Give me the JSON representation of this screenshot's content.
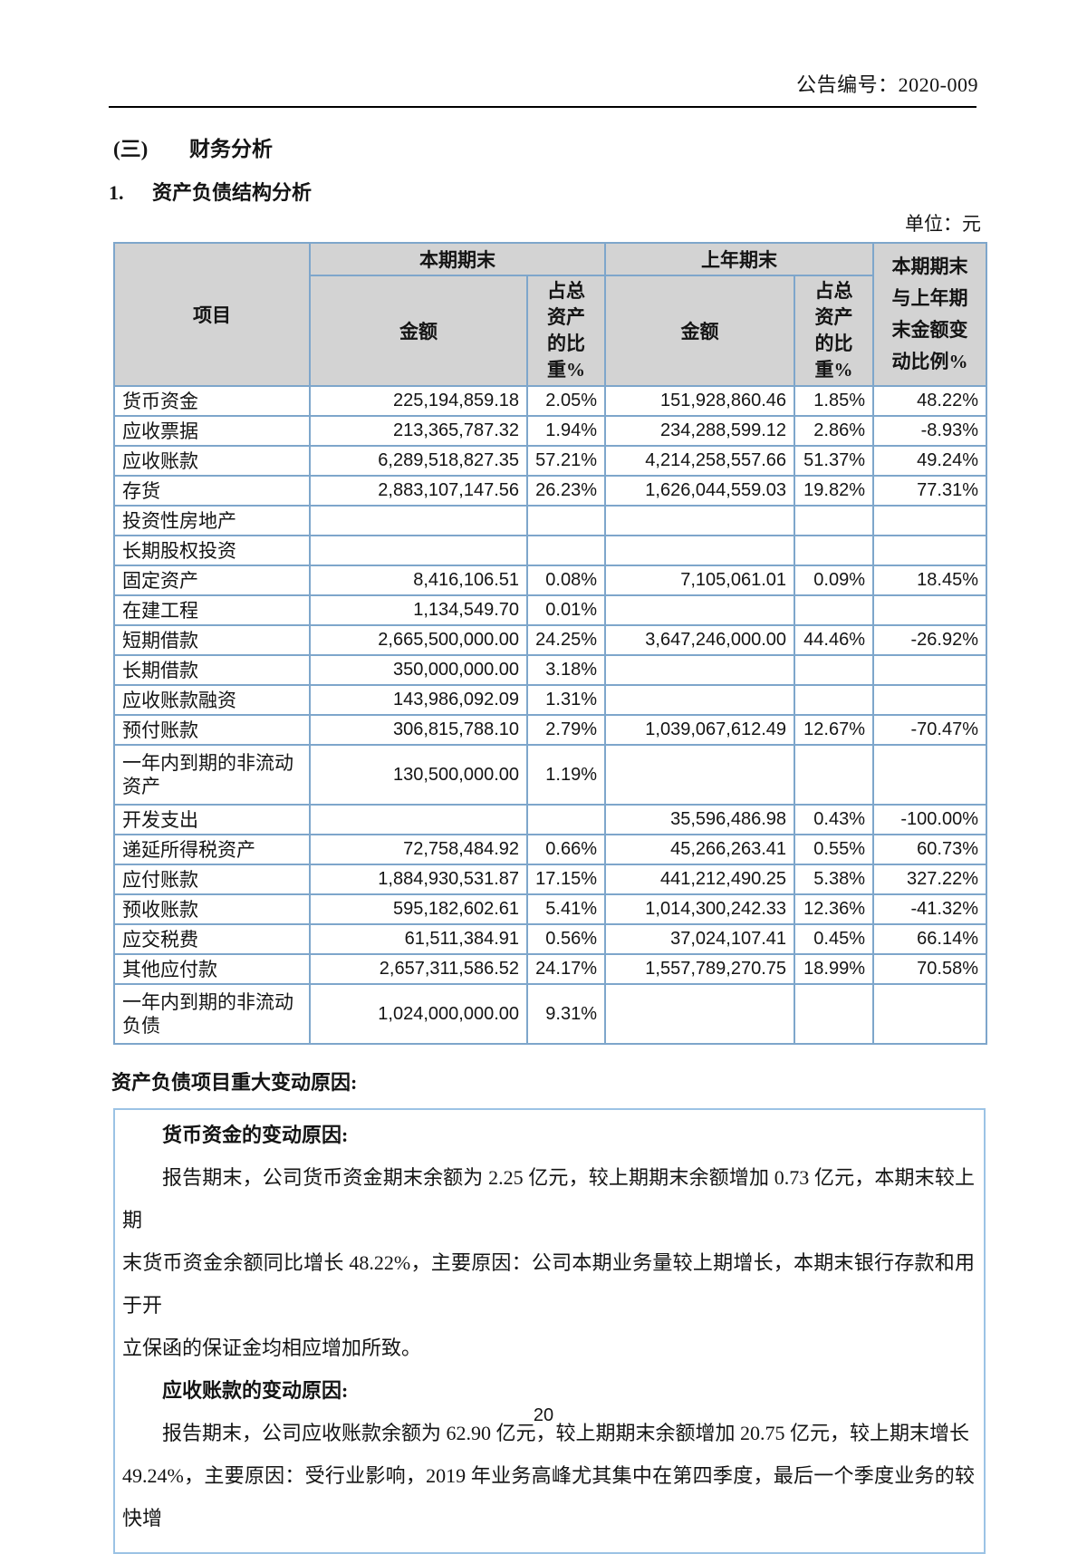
{
  "colors": {
    "table_border": "#7EA6CB",
    "header_bg": "#D3D3D3",
    "box_border": "#9CC3E5",
    "rule_color": "#000000"
  },
  "page": {
    "header_right": "公告编号：2020-009",
    "section_num": "(三)",
    "section_title": "财务分析",
    "subsection_num": "1.",
    "subsection_title": "资产负债结构分析",
    "unit_label": "单位：元",
    "footer_page_number": "20"
  },
  "table": {
    "col_item": "项目",
    "group_current": "本期期末",
    "group_prior": "上年期末",
    "col_amount": "金额",
    "col_ratio": "占总\n资产\n的比\n重%",
    "col_change": "本期期末\n与上年期\n末金额变\n动比例%",
    "rows": [
      {
        "item": "货币资金",
        "amt1": "225,194,859.18",
        "pct1": "2.05%",
        "amt2": "151,928,860.46",
        "pct2": "1.85%",
        "chg": "48.22%",
        "tall": false
      },
      {
        "item": "应收票据",
        "amt1": "213,365,787.32",
        "pct1": "1.94%",
        "amt2": "234,288,599.12",
        "pct2": "2.86%",
        "chg": "-8.93%",
        "tall": false
      },
      {
        "item": "应收账款",
        "amt1": "6,289,518,827.35",
        "pct1": "57.21%",
        "amt2": "4,214,258,557.66",
        "pct2": "51.37%",
        "chg": "49.24%",
        "tall": false
      },
      {
        "item": "存货",
        "amt1": "2,883,107,147.56",
        "pct1": "26.23%",
        "amt2": "1,626,044,559.03",
        "pct2": "19.82%",
        "chg": "77.31%",
        "tall": false
      },
      {
        "item": "投资性房地产",
        "amt1": "",
        "pct1": "",
        "amt2": "",
        "pct2": "",
        "chg": "",
        "tall": false
      },
      {
        "item": "长期股权投资",
        "amt1": "",
        "pct1": "",
        "amt2": "",
        "pct2": "",
        "chg": "",
        "tall": false
      },
      {
        "item": "固定资产",
        "amt1": "8,416,106.51",
        "pct1": "0.08%",
        "amt2": "7,105,061.01",
        "pct2": "0.09%",
        "chg": "18.45%",
        "tall": false
      },
      {
        "item": "在建工程",
        "amt1": "1,134,549.70",
        "pct1": "0.01%",
        "amt2": "",
        "pct2": "",
        "chg": "",
        "tall": false
      },
      {
        "item": "短期借款",
        "amt1": "2,665,500,000.00",
        "pct1": "24.25%",
        "amt2": "3,647,246,000.00",
        "pct2": "44.46%",
        "chg": "-26.92%",
        "tall": false
      },
      {
        "item": "长期借款",
        "amt1": "350,000,000.00",
        "pct1": "3.18%",
        "amt2": "",
        "pct2": "",
        "chg": "",
        "tall": false
      },
      {
        "item": "应收账款融资",
        "amt1": "143,986,092.09",
        "pct1": "1.31%",
        "amt2": "",
        "pct2": "",
        "chg": "",
        "tall": false
      },
      {
        "item": "预付账款",
        "amt1": "306,815,788.10",
        "pct1": "2.79%",
        "amt2": "1,039,067,612.49",
        "pct2": "12.67%",
        "chg": "-70.47%",
        "tall": false
      },
      {
        "item": "一年内到期的非流动资产",
        "amt1": "130,500,000.00",
        "pct1": "1.19%",
        "amt2": "",
        "pct2": "",
        "chg": "",
        "tall": true
      },
      {
        "item": "开发支出",
        "amt1": "",
        "pct1": "",
        "amt2": "35,596,486.98",
        "pct2": "0.43%",
        "chg": "-100.00%",
        "tall": false
      },
      {
        "item": "递延所得税资产",
        "amt1": "72,758,484.92",
        "pct1": "0.66%",
        "amt2": "45,266,263.41",
        "pct2": "0.55%",
        "chg": "60.73%",
        "tall": false
      },
      {
        "item": "应付账款",
        "amt1": "1,884,930,531.87",
        "pct1": "17.15%",
        "amt2": "441,212,490.25",
        "pct2": "5.38%",
        "chg": "327.22%",
        "tall": false
      },
      {
        "item": "预收账款",
        "amt1": "595,182,602.61",
        "pct1": "5.41%",
        "amt2": "1,014,300,242.33",
        "pct2": "12.36%",
        "chg": "-41.32%",
        "tall": false
      },
      {
        "item": "应交税费",
        "amt1": "61,511,384.91",
        "pct1": "0.56%",
        "amt2": "37,024,107.41",
        "pct2": "0.45%",
        "chg": "66.14%",
        "tall": false
      },
      {
        "item": "其他应付款",
        "amt1": "2,657,311,586.52",
        "pct1": "24.17%",
        "amt2": "1,557,789,270.75",
        "pct2": "18.99%",
        "chg": "70.58%",
        "tall": false
      },
      {
        "item": "一年内到期的非流动负债",
        "amt1": "1,024,000,000.00",
        "pct1": "9.31%",
        "amt2": "",
        "pct2": "",
        "chg": "",
        "tall": true
      }
    ]
  },
  "reasons": {
    "heading": "资产负债项目重大变动原因:",
    "sections": [
      {
        "title": "货币资金的变动原因:",
        "lines": [
          "报告期末，公司货币资金期末余额为 2.25 亿元，较上期期末余额增加 0.73 亿元，本期末较上期",
          "末货币资金余额同比增长 48.22%，主要原因：公司本期业务量较上期增长，本期末银行存款和用于开",
          "立保函的保证金均相应增加所致。"
        ]
      },
      {
        "title": "应收账款的变动原因:",
        "lines": [
          "报告期末，公司应收账款余额为 62.90 亿元，较上期期末余额增加 20.75 亿元，较上期末增长",
          "49.24%，主要原因：受行业影响，2019 年业务高峰尤其集中在第四季度，最后一个季度业务的较快增"
        ]
      }
    ]
  }
}
